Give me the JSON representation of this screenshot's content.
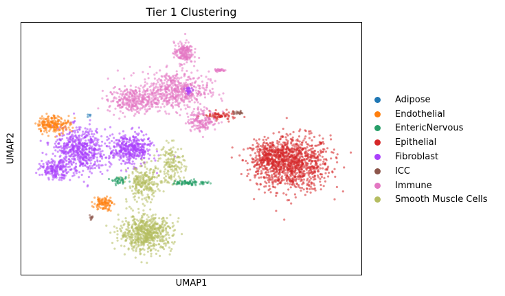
{
  "chart_data": {
    "type": "scatter",
    "title": "Tier 1 Clustering",
    "xlabel": "UMAP1",
    "ylabel": "UMAP2",
    "grid": false,
    "ticks": "none",
    "legend_position": "right",
    "categories": [
      {
        "name": "Adipose",
        "color": "#1f77b4"
      },
      {
        "name": "Endothelial",
        "color": "#ff7f0e"
      },
      {
        "name": "EntericNervous",
        "color": "#279e68"
      },
      {
        "name": "Epithelial",
        "color": "#d62728"
      },
      {
        "name": "Fibroblast",
        "color": "#aa40fc"
      },
      {
        "name": "ICC",
        "color": "#8c564b"
      },
      {
        "name": "Immune",
        "color": "#e377c2"
      },
      {
        "name": "Smooth Muscle Cells",
        "color": "#b5bd61"
      }
    ],
    "clusters": [
      {
        "category": "Epithelial",
        "center": [
          11.0,
          4.6
        ],
        "spread": [
          1.9,
          1.6
        ],
        "n": 900
      },
      {
        "category": "Epithelial",
        "center": [
          9.6,
          4.9
        ],
        "spread": [
          1.1,
          1.0
        ],
        "n": 350
      },
      {
        "category": "Epithelial",
        "center": [
          6.6,
          7.6
        ],
        "spread": [
          0.9,
          0.25
        ],
        "n": 80
      },
      {
        "category": "Immune",
        "center": [
          4.0,
          9.2
        ],
        "spread": [
          1.8,
          1.1
        ],
        "n": 550
      },
      {
        "category": "Immune",
        "center": [
          1.5,
          8.6
        ],
        "spread": [
          1.3,
          0.7
        ],
        "n": 300
      },
      {
        "category": "Immune",
        "center": [
          4.5,
          11.6
        ],
        "spread": [
          0.5,
          0.6
        ],
        "n": 180
      },
      {
        "category": "Immune",
        "center": [
          5.6,
          7.3
        ],
        "spread": [
          0.8,
          0.6
        ],
        "n": 150
      },
      {
        "category": "Immune",
        "center": [
          6.6,
          10.5
        ],
        "spread": [
          0.3,
          0.1
        ],
        "n": 30
      },
      {
        "category": "Fibroblast",
        "center": [
          -1.6,
          5.4
        ],
        "spread": [
          1.4,
          1.3
        ],
        "n": 600
      },
      {
        "category": "Fibroblast",
        "center": [
          1.4,
          5.5
        ],
        "spread": [
          1.1,
          0.9
        ],
        "n": 400
      },
      {
        "category": "Fibroblast",
        "center": [
          -3.0,
          4.2
        ],
        "spread": [
          0.8,
          0.5
        ],
        "n": 150
      },
      {
        "category": "Fibroblast",
        "center": [
          4.8,
          9.2
        ],
        "spread": [
          0.2,
          0.2
        ],
        "n": 25
      },
      {
        "category": "Endothelial",
        "center": [
          -3.1,
          7.1
        ],
        "spread": [
          0.9,
          0.5
        ],
        "n": 200
      },
      {
        "category": "Endothelial",
        "center": [
          -0.2,
          2.1
        ],
        "spread": [
          0.5,
          0.4
        ],
        "n": 100
      },
      {
        "category": "Smooth Muscle Cells",
        "center": [
          2.3,
          0.2
        ],
        "spread": [
          1.4,
          1.0
        ],
        "n": 650
      },
      {
        "category": "Smooth Muscle Cells",
        "center": [
          2.2,
          3.3
        ],
        "spread": [
          0.9,
          1.0
        ],
        "n": 250
      },
      {
        "category": "Smooth Muscle Cells",
        "center": [
          3.8,
          4.6
        ],
        "spread": [
          0.7,
          1.1
        ],
        "n": 150
      },
      {
        "category": "EntericNervous",
        "center": [
          4.9,
          3.4
        ],
        "spread": [
          1.0,
          0.15
        ],
        "n": 80
      },
      {
        "category": "EntericNervous",
        "center": [
          0.8,
          3.5
        ],
        "spread": [
          0.4,
          0.2
        ],
        "n": 40
      },
      {
        "category": "ICC",
        "center": [
          -0.9,
          1.2
        ],
        "spread": [
          0.15,
          0.1
        ],
        "n": 10
      },
      {
        "category": "ICC",
        "center": [
          7.7,
          7.8
        ],
        "spread": [
          0.3,
          0.1
        ],
        "n": 20
      },
      {
        "category": "Adipose",
        "center": [
          -1.0,
          7.6
        ],
        "spread": [
          0.1,
          0.1
        ],
        "n": 5
      }
    ],
    "xlim": [
      -5.0,
      15.0
    ],
    "ylim": [
      -2.5,
      13.5
    ]
  }
}
